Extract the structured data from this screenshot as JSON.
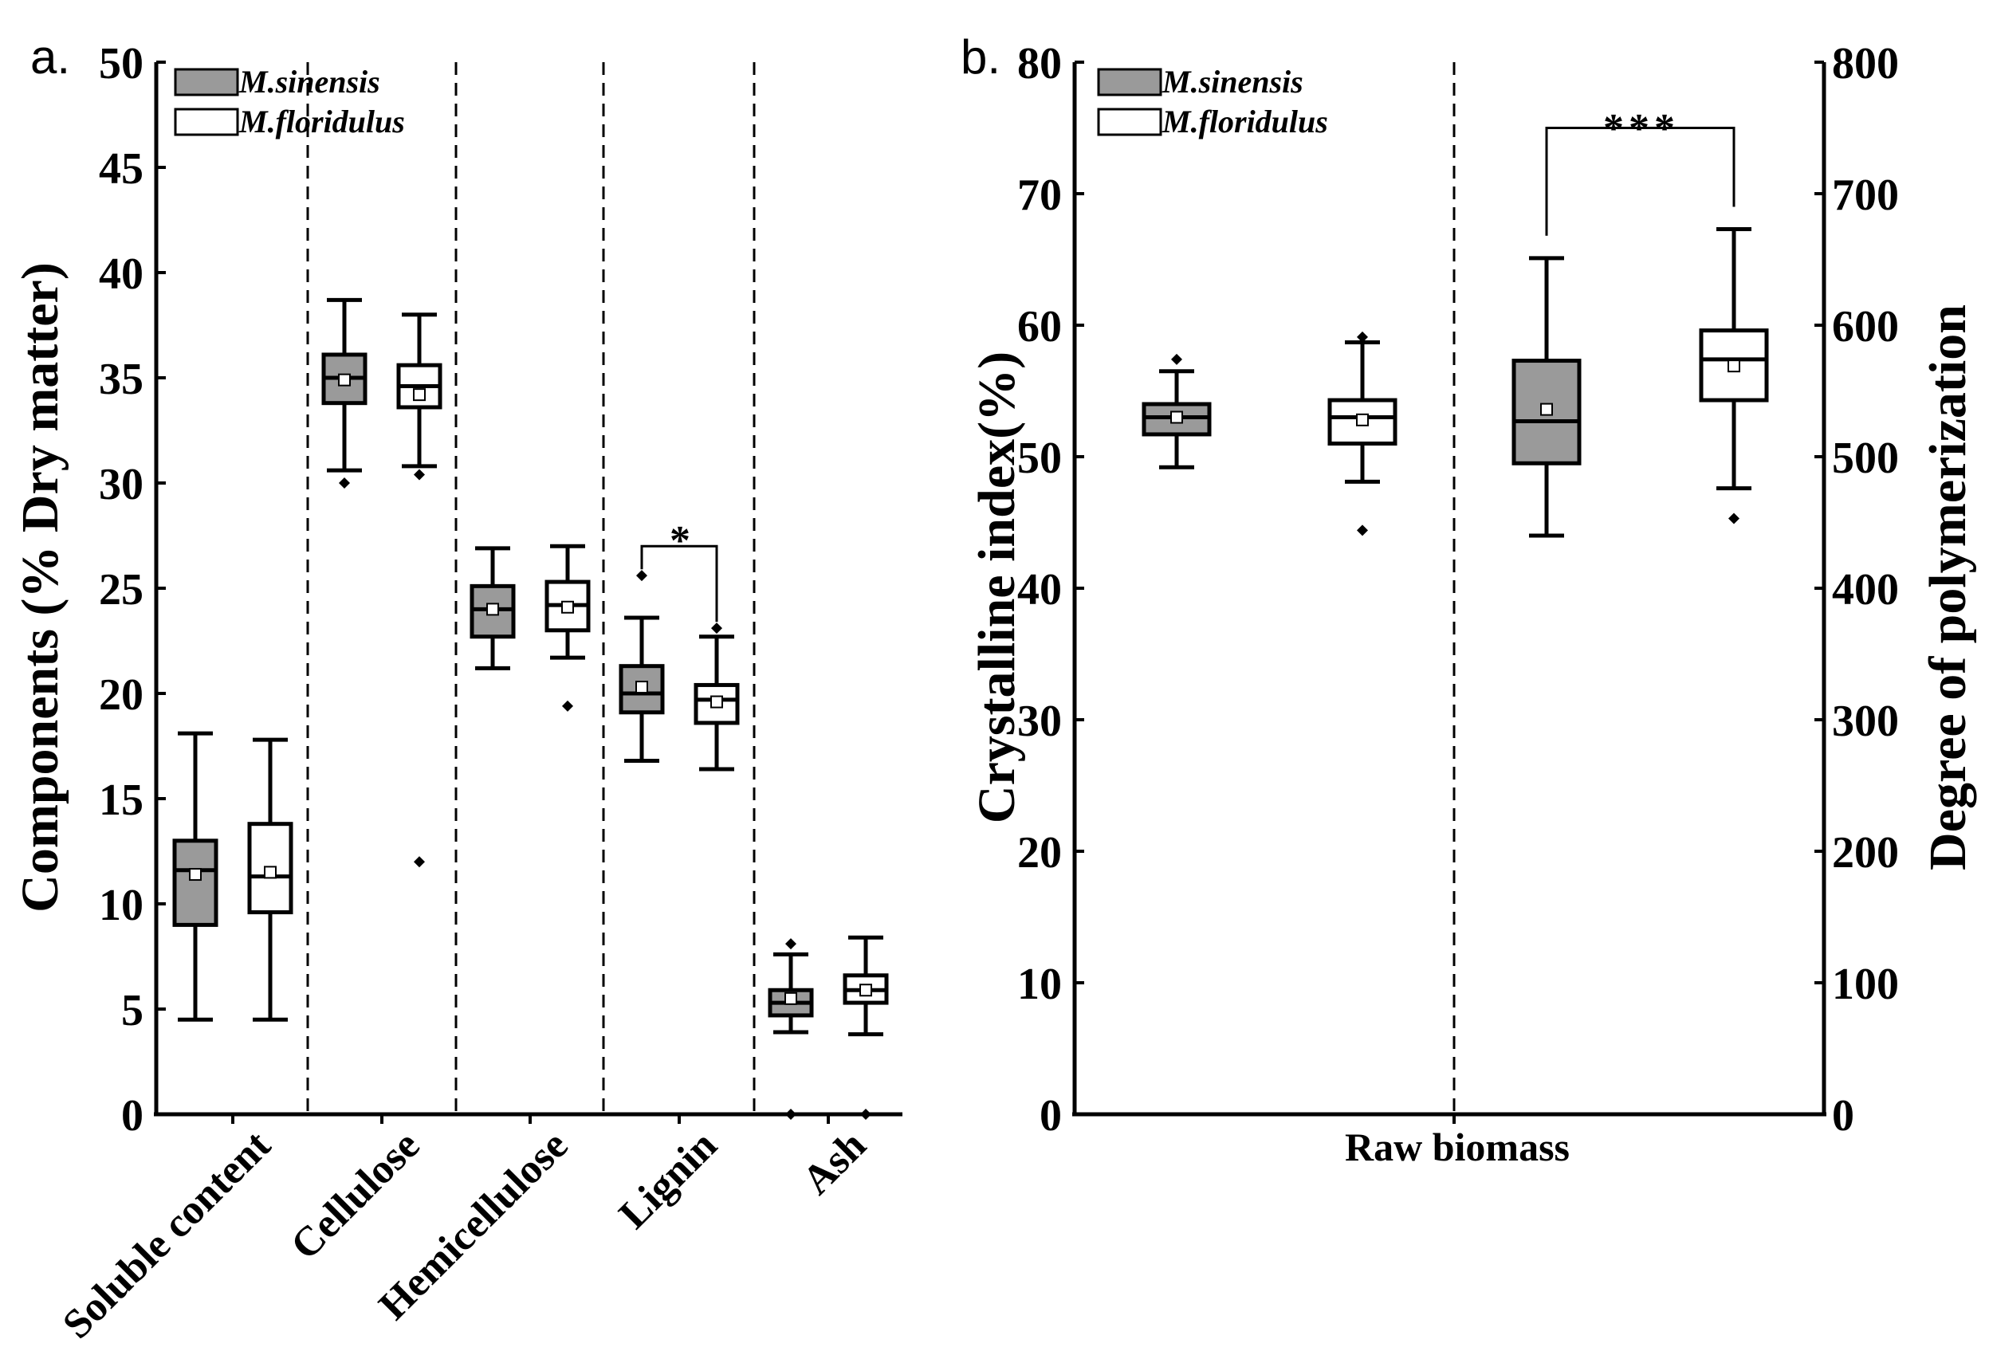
{
  "colors": {
    "sinensis": "#9a9a9a",
    "floridulus": "#ffffff",
    "line": "#000000"
  },
  "chart_data": [
    {
      "type": "boxplot",
      "panel_label": "a.",
      "ylabel": "Components (% Dry matter)",
      "ylim": [
        0,
        50
      ],
      "yticks": [
        0,
        5,
        10,
        15,
        20,
        25,
        30,
        35,
        40,
        45,
        50
      ],
      "legend": [
        "M.sinensis",
        "M.floridulus"
      ],
      "legend_position": "top-left",
      "categories": [
        "Soluble content",
        "Cellulose",
        "Hemicellulose",
        "Lignin",
        "Ash"
      ],
      "series": [
        {
          "name": "M.sinensis",
          "boxes": [
            {
              "min": 4.5,
              "q1": 9.0,
              "median": 11.6,
              "q3": 13.0,
              "max": 18.1,
              "mean": 11.4,
              "outliers": []
            },
            {
              "min": 30.6,
              "q1": 33.8,
              "median": 35.0,
              "q3": 36.1,
              "max": 38.7,
              "mean": 34.9,
              "outliers": [
                30.0
              ]
            },
            {
              "min": 21.2,
              "q1": 22.7,
              "median": 24.0,
              "q3": 25.1,
              "max": 26.9,
              "mean": 24.0,
              "outliers": []
            },
            {
              "min": 16.8,
              "q1": 19.1,
              "median": 20.0,
              "q3": 21.3,
              "max": 23.6,
              "mean": 20.3,
              "outliers": [
                25.6
              ]
            },
            {
              "min": 3.9,
              "q1": 4.7,
              "median": 5.3,
              "q3": 5.9,
              "max": 7.6,
              "mean": 5.5,
              "outliers": [
                8.1,
                0.0
              ]
            }
          ]
        },
        {
          "name": "M.floridulus",
          "boxes": [
            {
              "min": 4.5,
              "q1": 9.6,
              "median": 11.3,
              "q3": 13.8,
              "max": 17.8,
              "mean": 11.5,
              "outliers": []
            },
            {
              "min": 30.8,
              "q1": 33.6,
              "median": 34.6,
              "q3": 35.6,
              "max": 38.0,
              "mean": 34.2,
              "outliers": [
                30.4,
                12.0
              ]
            },
            {
              "min": 21.7,
              "q1": 23.0,
              "median": 24.2,
              "q3": 25.3,
              "max": 27.0,
              "mean": 24.1,
              "outliers": [
                19.4
              ]
            },
            {
              "min": 16.4,
              "q1": 18.6,
              "median": 19.7,
              "q3": 20.4,
              "max": 22.7,
              "mean": 19.6,
              "outliers": [
                23.1
              ]
            },
            {
              "min": 3.8,
              "q1": 5.3,
              "median": 5.9,
              "q3": 6.6,
              "max": 8.4,
              "mean": 5.9,
              "outliers": [
                0.0
              ]
            }
          ]
        }
      ],
      "significance": [
        {
          "category": "Lignin",
          "label": "*",
          "level": 27.0
        }
      ]
    },
    {
      "type": "boxplot",
      "panel_label": "b.",
      "ylabel": "Crystalline index(%)",
      "ylim": [
        0,
        80
      ],
      "yticks": [
        0,
        10,
        20,
        30,
        40,
        50,
        60,
        70,
        80
      ],
      "y2label": "Degree of polymerization",
      "y2lim": [
        0,
        800
      ],
      "y2ticks": [
        0,
        100,
        200,
        300,
        400,
        500,
        600,
        700,
        800
      ],
      "xlabel": "Raw biomass",
      "legend": [
        "M.sinensis",
        "M.floridulus"
      ],
      "legend_position": "top-left",
      "groups": [
        {
          "measure": "Crystalline index",
          "axis": "left",
          "boxes": [
            {
              "series": "M.sinensis",
              "min": 49.2,
              "q1": 51.7,
              "median": 53.0,
              "q3": 54.0,
              "max": 56.5,
              "mean": 53.0,
              "outliers": [
                57.4
              ]
            },
            {
              "series": "M.floridulus",
              "min": 48.1,
              "q1": 51.0,
              "median": 53.0,
              "q3": 54.3,
              "max": 58.7,
              "mean": 52.8,
              "outliers": [
                59.1,
                44.4
              ]
            }
          ]
        },
        {
          "measure": "Degree of polymerization",
          "axis": "right",
          "boxes": [
            {
              "series": "M.sinensis",
              "min": 440,
              "q1": 495,
              "median": 527,
              "q3": 573,
              "max": 651,
              "mean": 536,
              "outliers": []
            },
            {
              "series": "M.floridulus",
              "min": 476,
              "q1": 543,
              "median": 574,
              "q3": 596,
              "max": 673,
              "mean": 569,
              "outliers": [
                453
              ]
            }
          ]
        }
      ],
      "significance": [
        {
          "group": "Degree of polymerization",
          "label": "***",
          "level": 750
        }
      ]
    }
  ]
}
